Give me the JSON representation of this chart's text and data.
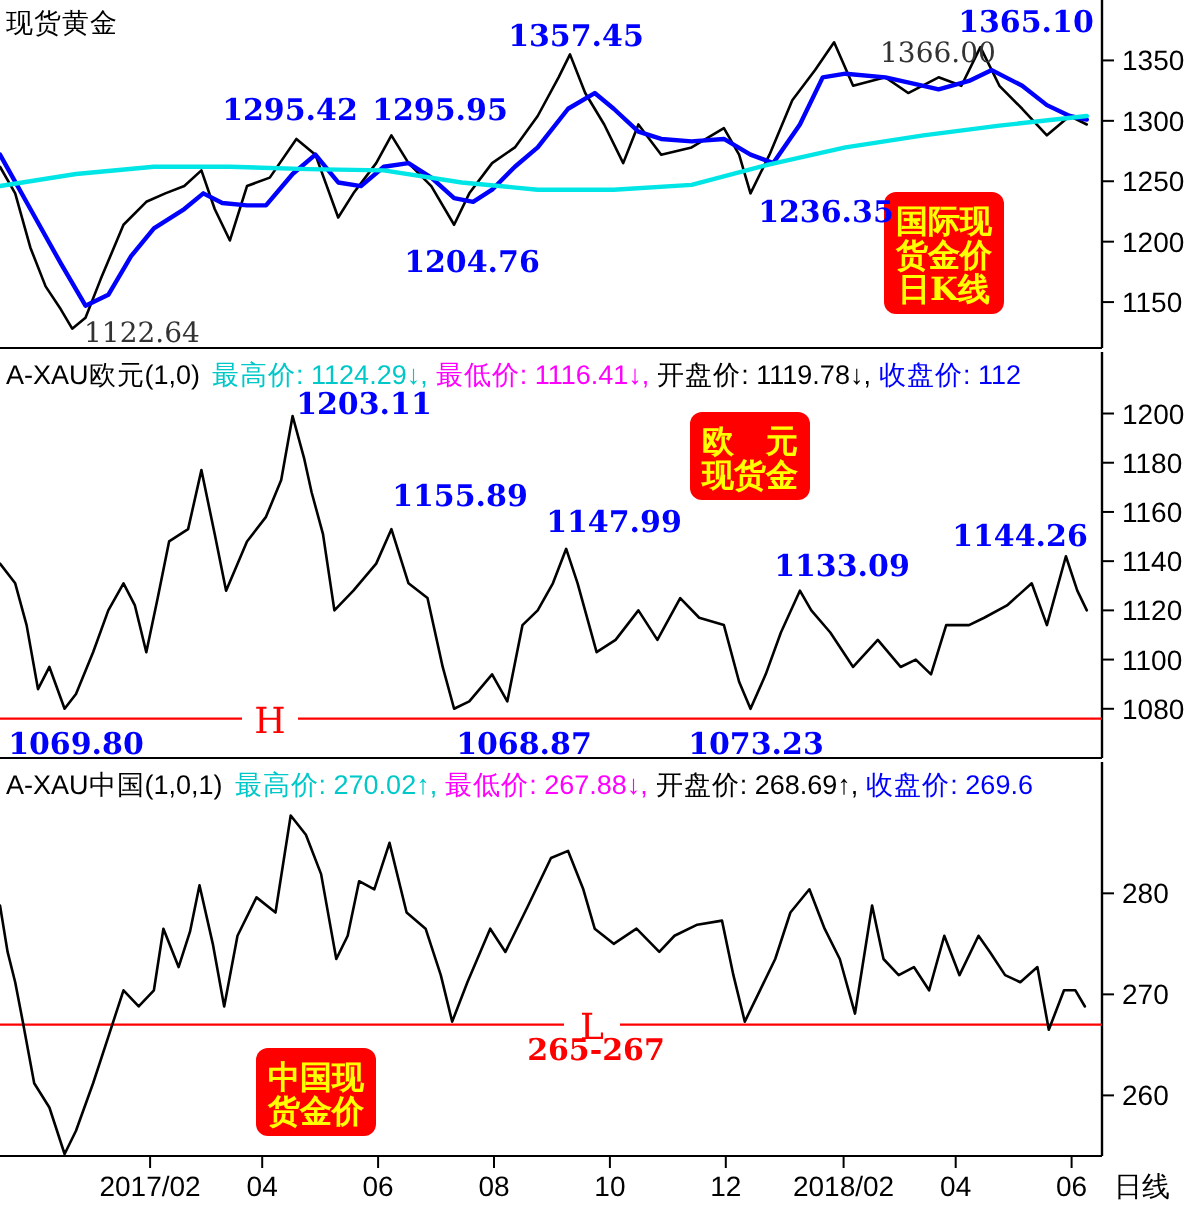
{
  "chart_data": [
    {
      "type": "line",
      "title": "现货黄金",
      "tick_labels": "y",
      "xlim": [
        "2016-11-14",
        "2018-06-17"
      ],
      "ylim": [
        1112,
        1400
      ],
      "yticks": [
        1150,
        1200,
        1250,
        1300,
        1350
      ],
      "line_style": "solid",
      "series": [
        {
          "color": "#000000",
          "x": [
            "2016-11-14",
            "2016-11-22",
            "2016-11-30",
            "2016-12-08",
            "2016-12-16",
            "2016-12-22",
            "2016-12-29",
            "2017-01-06",
            "2017-01-18",
            "2017-01-30",
            "2017-02-09",
            "2017-02-19",
            "2017-02-28",
            "2017-03-07",
            "2017-03-15",
            "2017-03-24",
            "2017-04-05",
            "2017-04-19",
            "2017-04-29",
            "2017-05-11",
            "2017-05-19",
            "2017-05-31",
            "2017-06-08",
            "2017-06-17",
            "2017-06-29",
            "2017-07-11",
            "2017-07-19",
            "2017-07-31",
            "2017-08-12",
            "2017-08-24",
            "2017-09-04",
            "2017-09-10",
            "2017-09-18",
            "2017-09-28",
            "2017-10-08",
            "2017-10-16",
            "2017-10-28",
            "2017-11-13",
            "2017-11-30",
            "2017-12-08",
            "2017-12-14",
            "2017-12-24",
            "2018-01-05",
            "2018-01-17",
            "2018-01-27",
            "2018-02-06",
            "2018-02-23",
            "2018-03-07",
            "2018-03-23",
            "2018-04-04",
            "2018-04-14",
            "2018-04-24",
            "2018-05-06",
            "2018-05-19",
            "2018-05-31",
            "2018-06-09"
          ],
          "values": [
            1262,
            1240,
            1195,
            1163,
            1144,
            1128,
            1137,
            1169,
            1214,
            1233,
            1240,
            1246,
            1259,
            1227,
            1201,
            1246,
            1253,
            1285,
            1272,
            1220,
            1240,
            1265,
            1288,
            1265,
            1246,
            1214,
            1240,
            1265,
            1278,
            1304,
            1336,
            1355,
            1323,
            1297,
            1265,
            1297,
            1272,
            1278,
            1294,
            1272,
            1240,
            1272,
            1317,
            1342,
            1365,
            1329,
            1336,
            1323,
            1336,
            1329,
            1361,
            1329,
            1310,
            1288,
            1304,
            1297
          ]
        },
        {
          "color": "#0000ff",
          "x": [
            "2016-11-14",
            "2016-11-30",
            "2016-12-16",
            "2016-12-29",
            "2017-01-10",
            "2017-01-22",
            "2017-02-03",
            "2017-02-19",
            "2017-03-01",
            "2017-03-11",
            "2017-03-24",
            "2017-04-03",
            "2017-04-17",
            "2017-04-29",
            "2017-05-11",
            "2017-05-23",
            "2017-06-04",
            "2017-06-17",
            "2017-06-29",
            "2017-07-11",
            "2017-07-21",
            "2017-07-31",
            "2017-08-12",
            "2017-08-24",
            "2017-09-09",
            "2017-09-23",
            "2017-10-03",
            "2017-10-16",
            "2017-10-28",
            "2017-11-13",
            "2017-11-30",
            "2017-12-14",
            "2017-12-26",
            "2018-01-09",
            "2018-01-21",
            "2018-02-02",
            "2018-02-23",
            "2018-03-15",
            "2018-03-23",
            "2018-04-08",
            "2018-04-20",
            "2018-05-06",
            "2018-05-19",
            "2018-05-31",
            "2018-06-09"
          ],
          "values": [
            1272,
            1227,
            1182,
            1147,
            1156,
            1188,
            1211,
            1227,
            1240,
            1232,
            1230,
            1230,
            1256,
            1272,
            1249,
            1246,
            1262,
            1265,
            1253,
            1236,
            1233,
            1243,
            1262,
            1278,
            1310,
            1323,
            1310,
            1291,
            1285,
            1283,
            1285,
            1272,
            1265,
            1297,
            1336,
            1339,
            1336,
            1329,
            1326,
            1333,
            1342,
            1329,
            1313,
            1304,
            1301
          ]
        },
        {
          "color": "#00e5e5",
          "x": [
            "2016-11-14",
            "2016-12-24",
            "2017-02-03",
            "2017-03-15",
            "2017-04-25",
            "2017-06-04",
            "2017-07-15",
            "2017-08-24",
            "2017-10-03",
            "2017-11-13",
            "2017-12-24",
            "2018-02-02",
            "2018-03-15",
            "2018-04-24",
            "2018-06-09"
          ],
          "values": [
            1246,
            1256,
            1262,
            1262,
            1260,
            1259,
            1249,
            1243,
            1243,
            1247,
            1264,
            1278,
            1288,
            1296,
            1304
          ]
        }
      ],
      "annotations": [
        "1122.64",
        "1295.42",
        "1295.95",
        "1204.76",
        "1357.45",
        "1236.35",
        "1366.00",
        "1365.10",
        "国际现货金价日K线"
      ]
    },
    {
      "type": "line",
      "title": "A-XAU欧元(1,0)",
      "tick_labels": "y",
      "xlim": [
        "2016-11-14",
        "2018-06-17"
      ],
      "ylim": [
        1060,
        1225
      ],
      "yticks": [
        1080,
        1100,
        1120,
        1140,
        1160,
        1180,
        1200
      ],
      "line_style": "solid",
      "series": [
        {
          "color": "#000000",
          "x": [
            "2016-11-14",
            "2016-11-22",
            "2016-11-28",
            "2016-12-04",
            "2016-12-10",
            "2016-12-18",
            "2016-12-24",
            "2017-01-02",
            "2017-01-10",
            "2017-01-18",
            "2017-01-24",
            "2017-01-30",
            "2017-02-05",
            "2017-02-11",
            "2017-02-21",
            "2017-02-28",
            "2017-03-07",
            "2017-03-13",
            "2017-03-24",
            "2017-04-03",
            "2017-04-11",
            "2017-04-17",
            "2017-04-23",
            "2017-04-27",
            "2017-05-03",
            "2017-05-09",
            "2017-05-19",
            "2017-05-31",
            "2017-06-08",
            "2017-06-17",
            "2017-06-27",
            "2017-07-05",
            "2017-07-11",
            "2017-07-19",
            "2017-07-31",
            "2017-08-08",
            "2017-08-16",
            "2017-08-24",
            "2017-09-01",
            "2017-09-08",
            "2017-09-14",
            "2017-09-24",
            "2017-10-04",
            "2017-10-16",
            "2017-10-26",
            "2017-11-07",
            "2017-11-17",
            "2017-11-30",
            "2017-12-08",
            "2017-12-14",
            "2017-12-22",
            "2017-12-30",
            "2018-01-09",
            "2018-01-15",
            "2018-01-25",
            "2018-02-06",
            "2018-02-19",
            "2018-03-03",
            "2018-03-11",
            "2018-03-19",
            "2018-03-27",
            "2018-04-08",
            "2018-04-16",
            "2018-04-28",
            "2018-05-11",
            "2018-05-19",
            "2018-05-29",
            "2018-06-04",
            "2018-06-09"
          ],
          "values": [
            1139,
            1131,
            1114,
            1088,
            1097,
            1080,
            1086,
            1103,
            1120,
            1131,
            1122,
            1103,
            1125,
            1148,
            1153,
            1177,
            1151,
            1128,
            1148,
            1158,
            1173,
            1199,
            1182,
            1168,
            1151,
            1120,
            1128,
            1139,
            1153,
            1131,
            1125,
            1097,
            1080,
            1083,
            1094,
            1083,
            1114,
            1120,
            1131,
            1145,
            1131,
            1103,
            1108,
            1120,
            1108,
            1125,
            1117,
            1114,
            1091,
            1080,
            1094,
            1111,
            1128,
            1120,
            1111,
            1097,
            1108,
            1097,
            1100,
            1094,
            1114,
            1114,
            1117,
            1122,
            1131,
            1114,
            1142,
            1128,
            1120
          ]
        }
      ],
      "ref_lines": [
        {
          "axis": "y",
          "value": 1076,
          "label": "H",
          "color": "#ff0000"
        }
      ],
      "annotations": [
        "最高价: 1124.29↓,",
        "最低价: 1116.41↓,",
        "开盘价: 1119.78↓,",
        "收盘价: 112",
        "1069.80",
        "1203.11",
        "1155.89",
        "1068.87",
        "1147.99",
        "1073.23",
        "1133.09",
        "1144.26",
        "欧　元现货金"
      ]
    },
    {
      "type": "line",
      "title": "A-XAU中国(1,0,1)",
      "xlabel": "日线",
      "xlim": [
        "2016-11-14",
        "2018-06-17"
      ],
      "ylim": [
        254,
        293
      ],
      "yticks": [
        260,
        270,
        280
      ],
      "xticks": [
        {
          "value": "2017-02-01",
          "label": "2017/02"
        },
        {
          "value": "2017-04-01",
          "label": "04"
        },
        {
          "value": "2017-06-01",
          "label": "06"
        },
        {
          "value": "2017-08-01",
          "label": "08"
        },
        {
          "value": "2017-10-01",
          "label": "10"
        },
        {
          "value": "2017-12-01",
          "label": "12"
        },
        {
          "value": "2018-02-01",
          "label": "2018/02"
        },
        {
          "value": "2018-04-01",
          "label": "04"
        },
        {
          "value": "2018-06-01",
          "label": "06"
        }
      ],
      "line_style": "solid",
      "series": [
        {
          "color": "#000000",
          "x": [
            "2016-11-14",
            "2016-11-18",
            "2016-11-22",
            "2016-11-26",
            "2016-12-02",
            "2016-12-10",
            "2016-12-18",
            "2016-12-24",
            "2017-01-02",
            "2017-01-10",
            "2017-01-18",
            "2017-01-26",
            "2017-02-03",
            "2017-02-08",
            "2017-02-16",
            "2017-02-22",
            "2017-02-27",
            "2017-03-06",
            "2017-03-12",
            "2017-03-19",
            "2017-03-29",
            "2017-04-08",
            "2017-04-16",
            "2017-04-24",
            "2017-05-02",
            "2017-05-10",
            "2017-05-16",
            "2017-05-22",
            "2017-05-30",
            "2017-06-07",
            "2017-06-16",
            "2017-06-26",
            "2017-07-04",
            "2017-07-10",
            "2017-07-18",
            "2017-07-30",
            "2017-08-07",
            "2017-08-19",
            "2017-08-31",
            "2017-09-09",
            "2017-09-17",
            "2017-09-23",
            "2017-10-03",
            "2017-10-15",
            "2017-10-27",
            "2017-11-04",
            "2017-11-16",
            "2017-11-29",
            "2017-12-05",
            "2017-12-11",
            "2017-12-19",
            "2017-12-27",
            "2018-01-04",
            "2018-01-14",
            "2018-01-22",
            "2018-01-30",
            "2018-02-07",
            "2018-02-16",
            "2018-02-22",
            "2018-03-02",
            "2018-03-10",
            "2018-03-18",
            "2018-03-26",
            "2018-04-03",
            "2018-04-13",
            "2018-04-19",
            "2018-04-27",
            "2018-05-05",
            "2018-05-14",
            "2018-05-20",
            "2018-05-28",
            "2018-06-03",
            "2018-06-08"
          ],
          "values": [
            278.8,
            274.2,
            271.2,
            267.3,
            261.2,
            258.8,
            254.2,
            256.5,
            261.2,
            265.8,
            270.4,
            268.8,
            270.4,
            276.5,
            272.7,
            276.2,
            280.8,
            275,
            268.8,
            275.8,
            279.6,
            278.1,
            287.7,
            285.8,
            281.9,
            273.5,
            275.8,
            281.2,
            280.4,
            285,
            278.1,
            276.5,
            271.9,
            267.3,
            271.2,
            276.5,
            274.2,
            278.8,
            283.5,
            284.2,
            280.4,
            276.5,
            275,
            276.5,
            274.2,
            275.8,
            276.9,
            277.3,
            271.9,
            267.3,
            270.4,
            273.5,
            278.1,
            280.4,
            276.5,
            273.5,
            268.1,
            278.8,
            273.5,
            271.9,
            272.7,
            270.4,
            275.8,
            271.9,
            275.8,
            274.2,
            271.9,
            271.2,
            272.7,
            266.5,
            270.4,
            270.4,
            268.8
          ]
        }
      ],
      "ref_lines": [
        {
          "axis": "y",
          "value": 267,
          "label": "L",
          "color": "#ff0000"
        }
      ],
      "annotations": [
        "最高价: 270.02↑,",
        "最低价: 267.88↓,",
        "开盘价: 268.69↑,",
        "收盘价: 269.6",
        "265-267",
        "中国现货金价"
      ]
    }
  ]
}
